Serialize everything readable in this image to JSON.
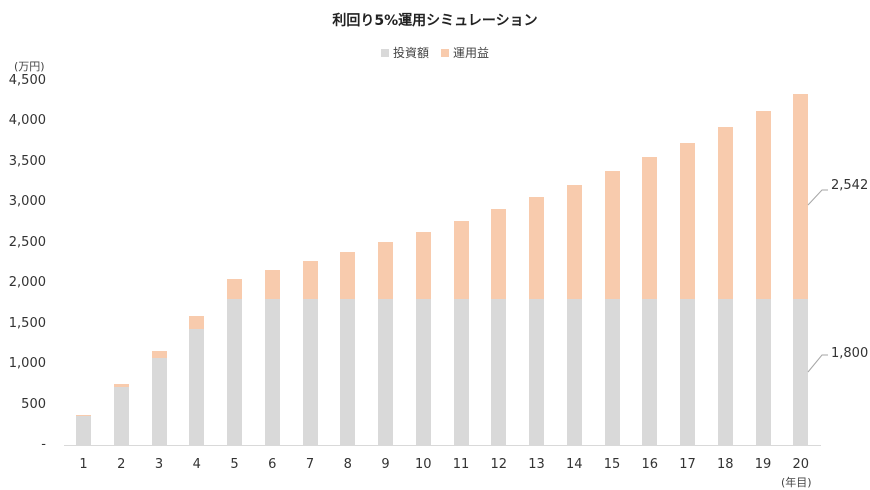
{
  "chart_data": {
    "type": "bar",
    "stacked": true,
    "title": "利回り5%運用シミュレーション",
    "xlabel": "(年目)",
    "ylabel": "(万円)",
    "ylim": [
      0,
      4500
    ],
    "yticks": [
      "-",
      "500",
      "1,000",
      "1,500",
      "2,000",
      "2,500",
      "3,000",
      "3,500",
      "4,000",
      "4,500"
    ],
    "ytick_values": [
      0,
      500,
      1000,
      1500,
      2000,
      2500,
      3000,
      3500,
      4000,
      4500
    ],
    "grid": false,
    "legend_position": "top",
    "categories": [
      "1",
      "2",
      "3",
      "4",
      "5",
      "6",
      "7",
      "8",
      "9",
      "10",
      "11",
      "12",
      "13",
      "14",
      "15",
      "16",
      "17",
      "18",
      "19",
      "20"
    ],
    "series": [
      {
        "name": "投資額",
        "color": "#d9d9d9",
        "values": [
          360,
          720,
          1080,
          1440,
          1800,
          1800,
          1800,
          1800,
          1800,
          1800,
          1800,
          1800,
          1800,
          1800,
          1800,
          1800,
          1800,
          1800,
          1800,
          1800
        ]
      },
      {
        "name": "運用益",
        "color": "#f8cbad",
        "values": [
          10,
          39,
          87,
          157,
          254,
          359,
          470,
          586,
          708,
          836,
          971,
          1113,
          1262,
          1419,
          1583,
          1756,
          1938,
          2130,
          2331,
          2542
        ]
      }
    ],
    "annotations": [
      {
        "text": "2,542",
        "target": "運用益 year 20"
      },
      {
        "text": "1,800",
        "target": "投資額 year 20"
      }
    ]
  },
  "title": "利回り5%運用シミュレーション",
  "legend": [
    {
      "label": "投資額",
      "color": "#d9d9d9"
    },
    {
      "label": "運用益",
      "color": "#f8cbad"
    }
  ],
  "y_unit": "(万円)",
  "x_unit": "(年目)",
  "annotations": {
    "profit": "2,542",
    "invest": "1,800"
  }
}
